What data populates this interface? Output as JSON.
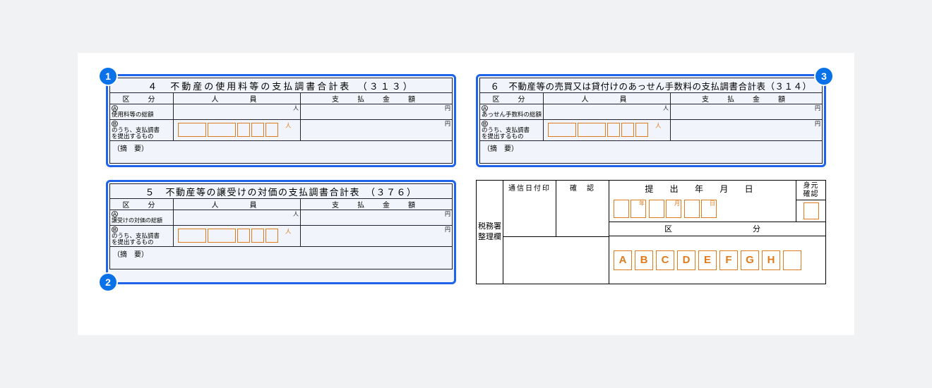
{
  "colors": {
    "page_bg": "#f1f2f3",
    "sheet_bg": "#ffffff",
    "form_bg": "#f2f4fb",
    "form_border": "#1e63e9",
    "grid_line": "#223344",
    "orange": "#e07b1d",
    "badge_bg": "#0a72e8",
    "badge_fg": "#ffffff",
    "black": "#000000"
  },
  "badges": {
    "b1": "1",
    "b2": "2",
    "b3": "3"
  },
  "col_headers": {
    "kubun": "区　分",
    "jin": "人　　員",
    "amount": "支　払　金　額"
  },
  "units": {
    "person": "人",
    "yen": "円"
  },
  "tekiyo_label": "（摘　要）",
  "row_b_label_l1": "のうち、支払調書",
  "row_b_label_l2": "を提出するもの",
  "sup": {
    "a": "A",
    "b": "B"
  },
  "forms": {
    "f4": {
      "title": "４　不動産の使用料等の支払調書合計表　（３１３）",
      "row_a_label": "使用料等の総額"
    },
    "f5": {
      "title": "５　不動産等の譲受けの対価の支払調書合計表　（３７６）",
      "row_a_label": "譲受けの対価の総額"
    },
    "f6": {
      "title": "６　不動産等の売買又は貸付けのあっせん手数料の支払調書合計表（３１４）",
      "row_a_label": "あっせん手数料の総額"
    }
  },
  "admin": {
    "side_label": "税務署\n整理欄",
    "tsushin": "通信日付印",
    "kakunin": "確　認",
    "date_label": "提 出 年 月 日",
    "date_units": {
      "year": "年",
      "month": "月",
      "day": "日"
    },
    "mimoto": "身元\n確認",
    "kubun_label": "区　　　　分",
    "kubun_letters": [
      "A",
      "B",
      "C",
      "D",
      "E",
      "F",
      "G",
      "H",
      ""
    ]
  }
}
